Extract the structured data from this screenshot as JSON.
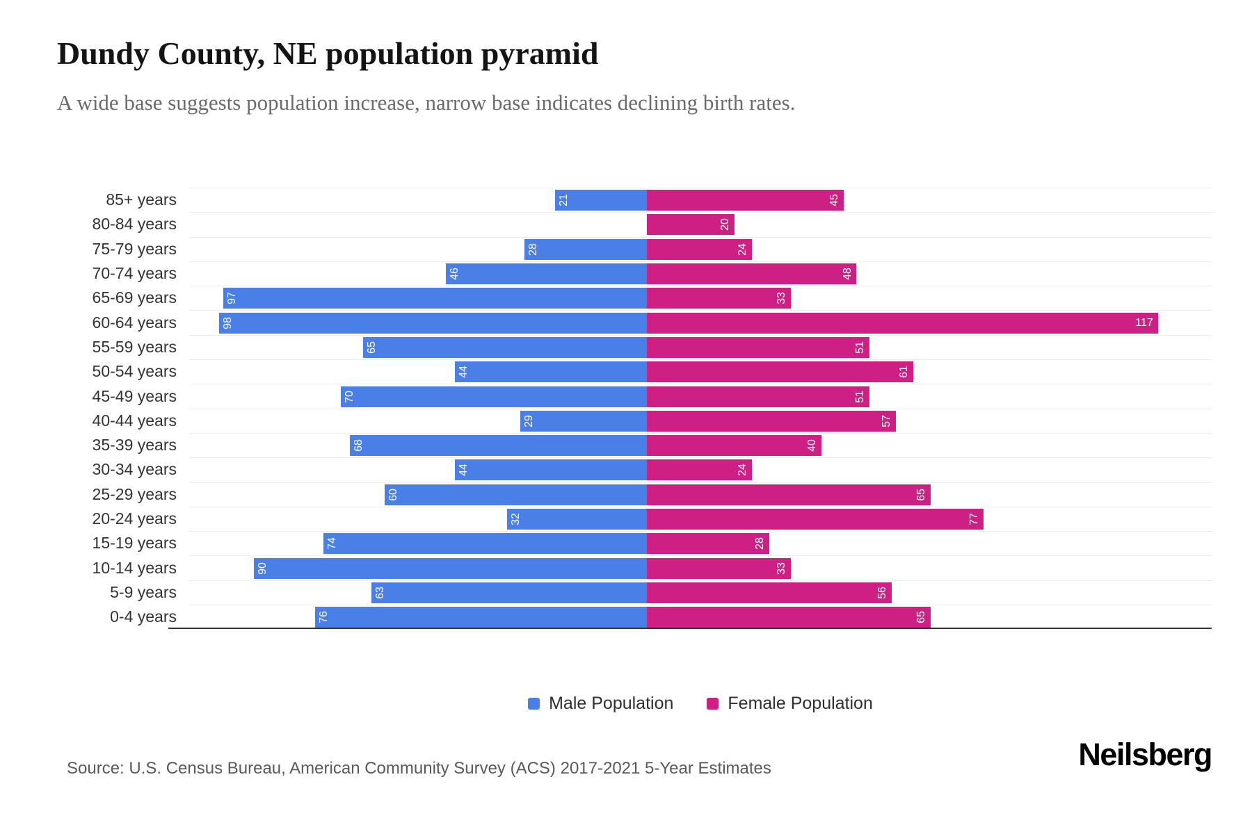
{
  "header": {
    "title": "Dundy County, NE population pyramid",
    "subtitle": "A wide base suggests population increase, narrow base indicates declining birth rates."
  },
  "legend": {
    "male_label": "Male Population",
    "female_label": "Female Population"
  },
  "footer": {
    "source": "Source: U.S. Census Bureau, American Community Survey (ACS) 2017-2021 5-Year Estimates",
    "brand": "Neilsberg"
  },
  "colors": {
    "male": "#4b7fe8",
    "female": "#ce2084",
    "gridline": "#ededed",
    "axis": "#333333",
    "value_label_text": "#ffffff"
  },
  "chart_data": {
    "type": "bar",
    "variant": "population-pyramid",
    "orientation": "horizontal",
    "title": "Dundy County, NE population pyramid",
    "subtitle": "A wide base suggests population increase, narrow base indicates declining birth rates.",
    "xlabel": "",
    "ylabel": "",
    "categories": [
      "85+ years",
      "80-84 years",
      "75-79 years",
      "70-74 years",
      "65-69 years",
      "60-64 years",
      "55-59 years",
      "50-54 years",
      "45-49 years",
      "40-44 years",
      "35-39 years",
      "30-34 years",
      "25-29 years",
      "20-24 years",
      "15-19 years",
      "10-14 years",
      "5-9 years",
      "0-4 years"
    ],
    "series": [
      {
        "name": "Male Population",
        "side": "left",
        "color": "#4b7fe8",
        "values": [
          21,
          0,
          28,
          46,
          97,
          98,
          65,
          44,
          70,
          29,
          68,
          44,
          60,
          32,
          74,
          90,
          63,
          76
        ]
      },
      {
        "name": "Female Population",
        "side": "right",
        "color": "#ce2084",
        "values": [
          45,
          20,
          24,
          48,
          33,
          117,
          51,
          61,
          51,
          57,
          40,
          24,
          65,
          77,
          28,
          33,
          56,
          65
        ]
      }
    ],
    "value_labels": "shown-inside-bar-ends-rotated",
    "legend_position": "bottom",
    "grid": "horizontal-row-lines",
    "axis_tick_labels_shown": false
  }
}
